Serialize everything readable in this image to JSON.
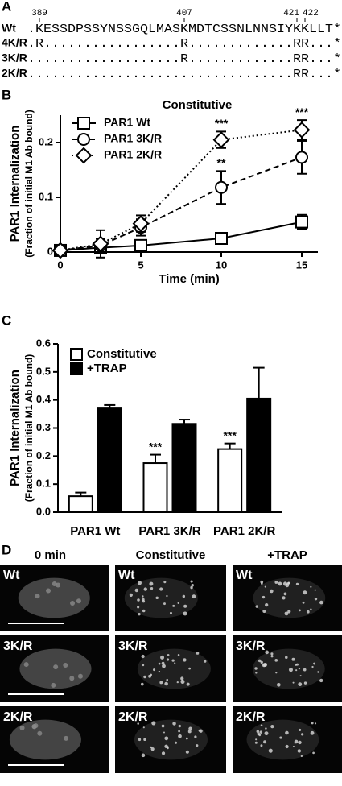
{
  "panel_labels": [
    "A",
    "B",
    "C",
    "D"
  ],
  "alignment": {
    "positions": [
      389,
      407,
      421,
      422
    ],
    "rows": [
      {
        "label": "Wt",
        "sequence": ".KESSDPSSYNSSGQLMASKMDTCSSNLNNSIYKKLLT*"
      },
      {
        "label": "4K/R",
        "sequence": ".R.................R.............RR...*"
      },
      {
        "label": "3K/R",
        "sequence": "...................R.............RR...*"
      },
      {
        "label": "2K/R",
        "sequence": ".................................RR...*"
      }
    ]
  },
  "chart_data": [
    {
      "type": "line",
      "title": "Constitutive",
      "ylabel": "PAR1 Internalization",
      "ylabel_sub": "(Fraction of initial M1 Ab bound)",
      "xlabel": "Time (min)",
      "x": [
        0,
        2.5,
        5,
        10,
        15
      ],
      "xlim": [
        0,
        16
      ],
      "xticks": [
        0,
        5,
        10,
        15
      ],
      "ylim": [
        0,
        0.25
      ],
      "yticks": [
        0,
        0.1,
        0.2
      ],
      "legend": "top-left",
      "series": [
        {
          "name": "PAR1 Wt",
          "color": "#000000",
          "marker": "square",
          "dash": "solid",
          "values": [
            0.003,
            0.008,
            0.012,
            0.025,
            0.055
          ],
          "errors": [
            0.002,
            0.005,
            0.005,
            0.008,
            0.013
          ],
          "significance": [
            null,
            null,
            null,
            null,
            null
          ]
        },
        {
          "name": "PAR1 3K/R",
          "color": "#000000",
          "marker": "circle",
          "dash": "dashed",
          "values": [
            0.003,
            0.012,
            0.045,
            0.118,
            0.173
          ],
          "errors": [
            0.003,
            0.012,
            0.015,
            0.03,
            0.03
          ],
          "significance": [
            null,
            null,
            null,
            "**",
            null
          ]
        },
        {
          "name": "PAR1 2K/R",
          "color": "#000000",
          "marker": "diamond",
          "dash": "dotted",
          "values": [
            0.003,
            0.015,
            0.052,
            0.205,
            0.223
          ],
          "errors": [
            0.003,
            0.025,
            0.015,
            0.015,
            0.018
          ],
          "significance": [
            null,
            null,
            null,
            "***",
            "***"
          ]
        }
      ]
    },
    {
      "type": "bar",
      "ylabel": "PAR1 Internalization",
      "ylabel_sub": "(Fraction of initial M1 Ab bound)",
      "categories": [
        "PAR1 Wt",
        "PAR1 3K/R",
        "PAR1 2K/R"
      ],
      "ylim": [
        0,
        0.6
      ],
      "yticks": [
        {
          "value": 0,
          "label": "0.0"
        },
        0.1,
        0.2,
        0.3,
        0.4,
        0.5,
        0.6
      ],
      "legend": "top-left",
      "series": [
        {
          "name": "Constitutive",
          "color": "#ffffff",
          "values": [
            0.057,
            0.175,
            0.225
          ],
          "errors": [
            0.013,
            0.03,
            0.02
          ],
          "significance": [
            null,
            "***",
            "***"
          ]
        },
        {
          "name": "+TRAP",
          "color": "#000000",
          "values": [
            0.37,
            0.315,
            0.405
          ],
          "errors": [
            0.012,
            0.015,
            0.11
          ],
          "significance": [
            null,
            null,
            null
          ]
        }
      ]
    }
  ],
  "micrographs": {
    "columns": [
      "0 min",
      "Constitutive",
      "+TRAP"
    ],
    "rows": [
      [
        "Wt",
        "Wt",
        "Wt"
      ],
      [
        "3K/R",
        "3K/R",
        "3K/R"
      ],
      [
        "2K/R",
        "2K/R",
        "2K/R"
      ]
    ]
  }
}
